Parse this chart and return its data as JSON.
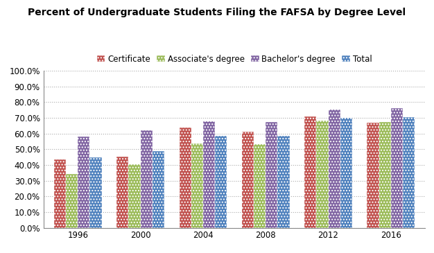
{
  "title": "Percent of Undergraduate Students Filing the FAFSA by Degree Level",
  "years": [
    1996,
    2000,
    2004,
    2008,
    2012,
    2016
  ],
  "series": {
    "Certificate": [
      0.435,
      0.451,
      0.638,
      0.61,
      0.71,
      0.668
    ],
    "Associate's degree": [
      0.344,
      0.403,
      0.537,
      0.533,
      0.683,
      0.673
    ],
    "Bachelor's degree": [
      0.581,
      0.623,
      0.678,
      0.672,
      0.754,
      0.762
    ],
    "Total": [
      0.447,
      0.49,
      0.584,
      0.585,
      0.7,
      0.703
    ]
  },
  "colors": {
    "Certificate": "#C0504D",
    "Associate's degree": "#9BBB59",
    "Bachelor's degree": "#8064A2",
    "Total": "#4F81BD"
  },
  "hatches": {
    "Certificate": ".....",
    "Associate's degree": ".....",
    "Bachelor's degree": ".....",
    "Total": "....."
  },
  "ylim": [
    0.0,
    1.0
  ],
  "yticks": [
    0.0,
    0.1,
    0.2,
    0.3,
    0.4,
    0.5,
    0.6,
    0.7,
    0.8,
    0.9,
    1.0
  ],
  "ytick_labels": [
    "0.0%",
    "10.0%",
    "20.0%",
    "30.0%",
    "40.0%",
    "50.0%",
    "60.0%",
    "70.0%",
    "80.0%",
    "90.0%",
    "100.0%"
  ],
  "legend_order": [
    "Certificate",
    "Associate's degree",
    "Bachelor's degree",
    "Total"
  ],
  "background_color": "#FFFFFF",
  "grid_color": "#AAAAAA",
  "title_fontsize": 10,
  "tick_fontsize": 8.5,
  "legend_fontsize": 8.5,
  "bar_width": 0.19
}
